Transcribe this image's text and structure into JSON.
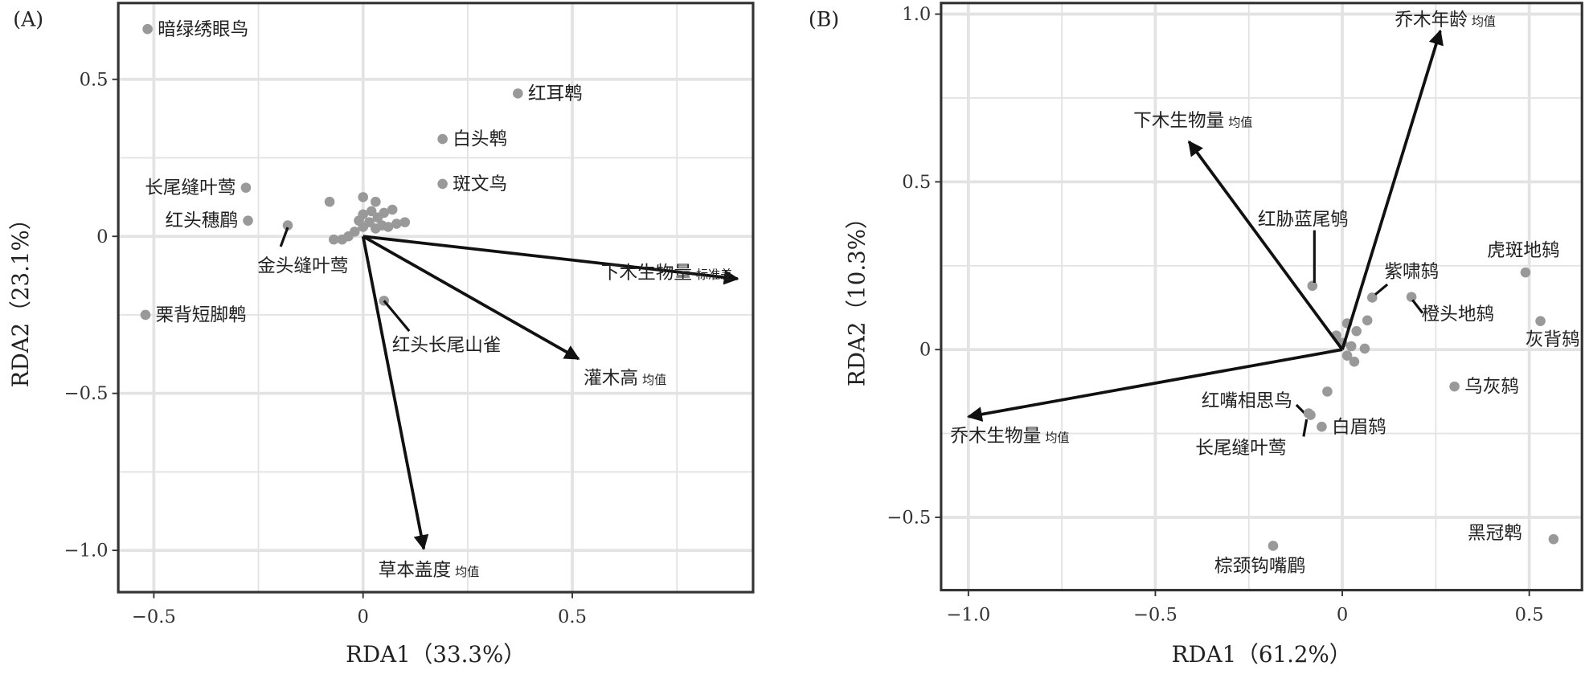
{
  "colors": {
    "point": "#999999",
    "arrow": "#111111",
    "grid": "#e3e3e3",
    "frame": "#333333"
  },
  "chart_data": [
    {
      "type": "scatter",
      "panel": "(A)",
      "xlabel": "RDA1（33.3%）",
      "ylabel": "RDA2（23.1%）",
      "xlim": [
        -0.585,
        0.932
      ],
      "ylim": [
        -1.133,
        0.743
      ],
      "xticks": [
        {
          "v": -0.5,
          "t": "−0.5"
        },
        {
          "v": 0,
          "t": "0"
        },
        {
          "v": 0.5,
          "t": "0.5"
        }
      ],
      "yticks": [
        {
          "v": 0.5,
          "t": "0.5"
        },
        {
          "v": 0,
          "t": "0"
        },
        {
          "v": -0.5,
          "t": "−0.5"
        },
        {
          "v": -1.0,
          "t": "−1.0"
        }
      ],
      "minor_x": [
        -0.25,
        0.25,
        0.75
      ],
      "minor_y": [
        0.25,
        -0.25,
        -0.75
      ],
      "grid": true,
      "species": [
        {
          "name": "暗绿绣眼鸟",
          "x": -0.515,
          "y": 0.66
        },
        {
          "name": "红耳鹎",
          "x": 0.37,
          "y": 0.455
        },
        {
          "name": "白头鹎",
          "x": 0.19,
          "y": 0.31
        },
        {
          "name": "斑文鸟",
          "x": 0.19,
          "y": 0.167
        },
        {
          "name": "长尾缝叶莺",
          "x": -0.28,
          "y": 0.155
        },
        {
          "name": "红头穗鹛",
          "x": -0.275,
          "y": 0.05
        },
        {
          "name": "金头缝叶莺",
          "x": -0.18,
          "y": 0.035
        },
        {
          "name": "栗背短脚鹎",
          "x": -0.52,
          "y": -0.25
        },
        {
          "name": "红头长尾山雀",
          "x": 0.05,
          "y": -0.205
        }
      ],
      "other_points": [
        [
          -0.08,
          0.11
        ],
        [
          0.0,
          0.125
        ],
        [
          0.03,
          0.11
        ],
        [
          0.07,
          0.085
        ],
        [
          0.1,
          0.045
        ],
        [
          -0.07,
          -0.01
        ],
        [
          -0.05,
          -0.01
        ],
        [
          -0.035,
          0.0
        ],
        [
          -0.02,
          0.015
        ],
        [
          0.0,
          0.07
        ],
        [
          0.02,
          0.08
        ],
        [
          0.035,
          0.06
        ],
        [
          0.045,
          0.035
        ],
        [
          0.06,
          0.03
        ],
        [
          0.03,
          0.025
        ],
        [
          0.0,
          0.03
        ],
        [
          0.015,
          0.045
        ],
        [
          -0.01,
          0.05
        ],
        [
          0.05,
          0.075
        ],
        [
          0.08,
          0.04
        ]
      ],
      "vectors": [
        {
          "name": "下木生物量",
          "sub": "标准差",
          "x": 0.895,
          "y": -0.135
        },
        {
          "name": "灌木高",
          "sub": "均值",
          "x": 0.515,
          "y": -0.39
        },
        {
          "name": "草本盖度",
          "sub": "均值",
          "x": 0.145,
          "y": -0.995
        }
      ]
    },
    {
      "type": "scatter",
      "panel": "(B)",
      "xlabel": "RDA1（61.2%）",
      "ylabel": "RDA2（10.3%）",
      "xlim": [
        -1.073,
        0.641
      ],
      "ylim": [
        -0.717,
        1.033
      ],
      "xticks": [
        {
          "v": -1.0,
          "t": "−1.0"
        },
        {
          "v": -0.5,
          "t": "−0.5"
        },
        {
          "v": 0,
          "t": "0"
        },
        {
          "v": 0.5,
          "t": "0.5"
        }
      ],
      "yticks": [
        {
          "v": 1.0,
          "t": "1.0"
        },
        {
          "v": 0.5,
          "t": "0.5"
        },
        {
          "v": 0,
          "t": "0"
        },
        {
          "v": -0.5,
          "t": "−0.5"
        }
      ],
      "minor_x": [
        -0.75,
        -0.25,
        0.25
      ],
      "minor_y": [
        0.75,
        0.25,
        -0.25
      ],
      "grid": true,
      "species": [
        {
          "name": "虎斑地鸫",
          "x": 0.49,
          "y": 0.23
        },
        {
          "name": "灰背鸫",
          "x": 0.53,
          "y": 0.085
        },
        {
          "name": "橙头地鸫",
          "x": 0.185,
          "y": 0.157
        },
        {
          "name": "紫啸鸫",
          "x": 0.08,
          "y": 0.155
        },
        {
          "name": "红胁蓝尾鸲",
          "x": -0.08,
          "y": 0.19
        },
        {
          "name": "乌灰鸫",
          "x": 0.3,
          "y": -0.11
        },
        {
          "name": "红嘴相思鸟",
          "x": -0.085,
          "y": -0.195
        },
        {
          "name": "白眉鸫",
          "x": -0.055,
          "y": -0.23
        },
        {
          "name": "长尾缝叶莺",
          "x": -0.09,
          "y": -0.19
        },
        {
          "name": "黑冠鹎",
          "x": 0.565,
          "y": -0.565
        },
        {
          "name": "棕颈钩嘴鹛",
          "x": -0.185,
          "y": -0.585
        }
      ],
      "other_points": [
        [
          -0.04,
          -0.125
        ],
        [
          0.067,
          0.087
        ],
        [
          0.038,
          0.055
        ],
        [
          0.013,
          0.078
        ],
        [
          -0.016,
          0.042
        ],
        [
          0.024,
          0.01
        ],
        [
          0.06,
          0.003
        ],
        [
          0.013,
          -0.018
        ],
        [
          0.032,
          -0.036
        ],
        [
          0.0,
          0.02
        ]
      ],
      "vectors": [
        {
          "name": "乔木年龄",
          "sub": "均值",
          "x": 0.262,
          "y": 0.95
        },
        {
          "name": "下木生物量",
          "sub": "均值",
          "x": -0.41,
          "y": 0.62
        },
        {
          "name": "乔木生物量",
          "sub": "均值",
          "x": -1.0,
          "y": -0.2
        }
      ]
    }
  ]
}
